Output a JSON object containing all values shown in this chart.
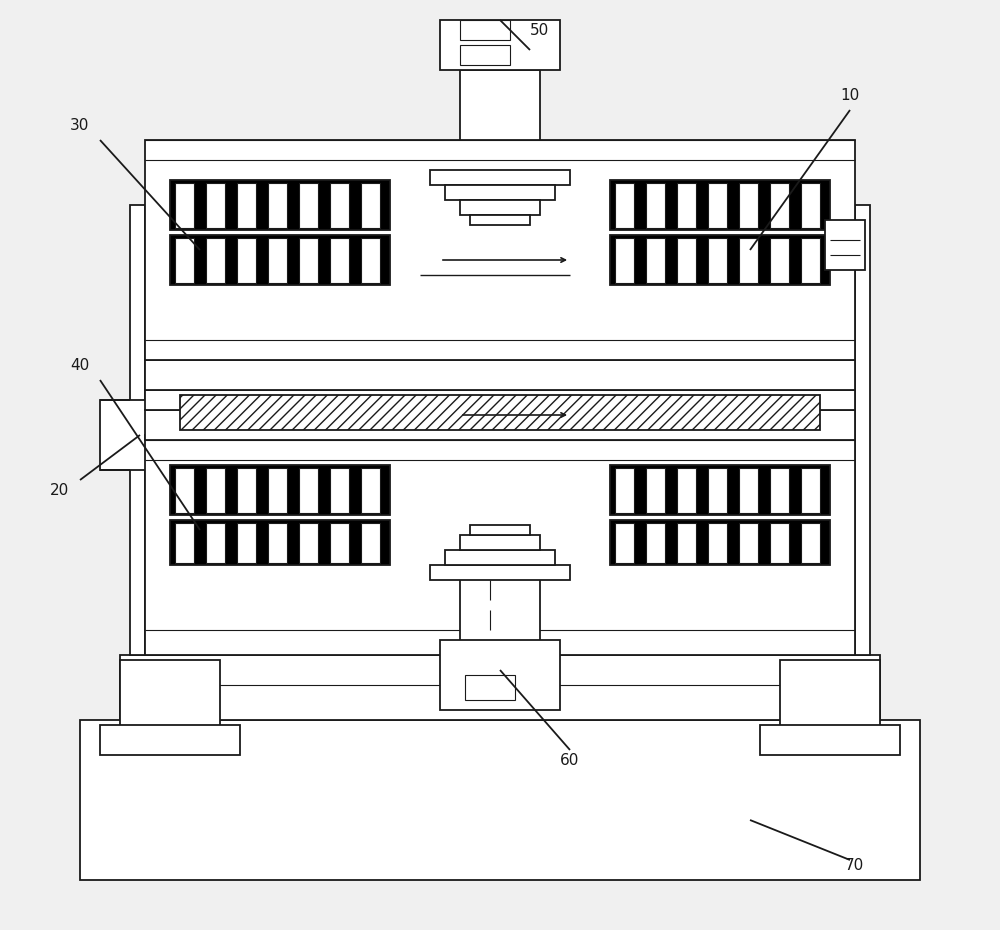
{
  "bg_color": "#f0f0f0",
  "line_color": "#1a1a1a",
  "lw": 1.3,
  "lw_thick": 2.0,
  "lw_thin": 0.8
}
